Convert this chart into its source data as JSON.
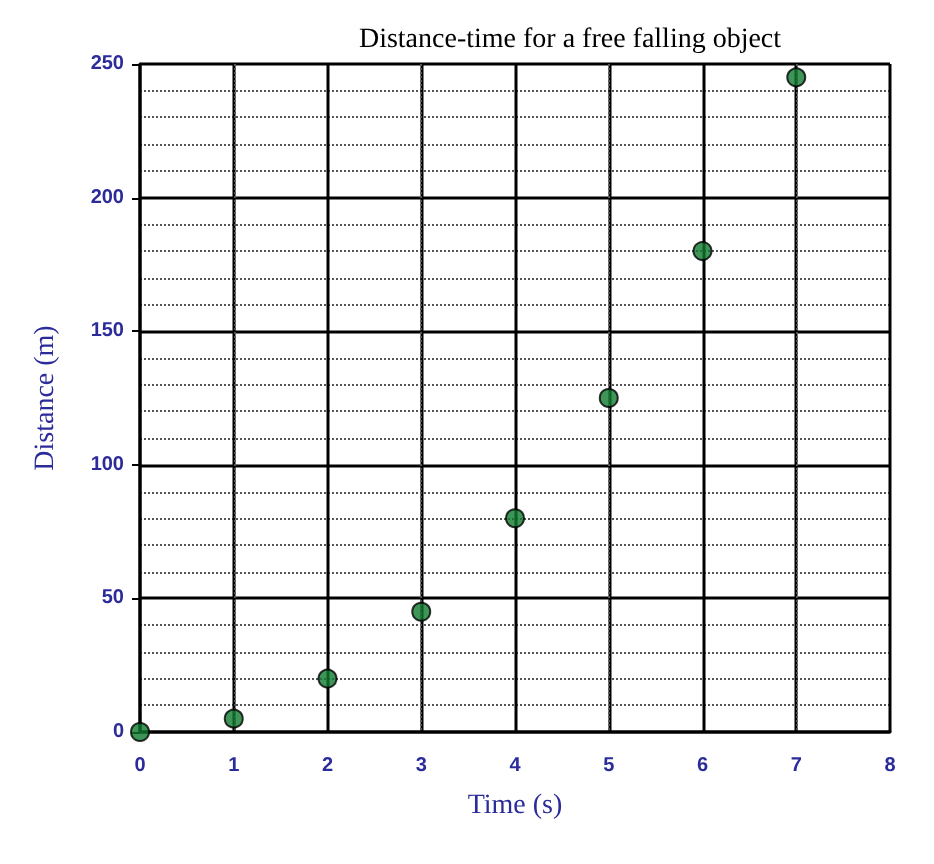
{
  "chart_data": {
    "type": "scatter",
    "title": "Distance-time for a free falling object",
    "xlabel": "Time (s)",
    "ylabel": "Distance (m)",
    "x": [
      0,
      1,
      2,
      3,
      4,
      5,
      6,
      7
    ],
    "series": [
      {
        "color": "#0f7a2e",
        "values": [
          0,
          5,
          20,
          45,
          80,
          125,
          180,
          245
        ]
      }
    ],
    "xlim": [
      0,
      8
    ],
    "xticks": [
      0,
      1,
      2,
      3,
      4,
      5,
      6,
      7,
      8
    ],
    "ylim": [
      0,
      250
    ],
    "yticks": [
      0,
      50,
      100,
      150,
      200,
      250
    ],
    "grid": true,
    "marker": "circle"
  }
}
